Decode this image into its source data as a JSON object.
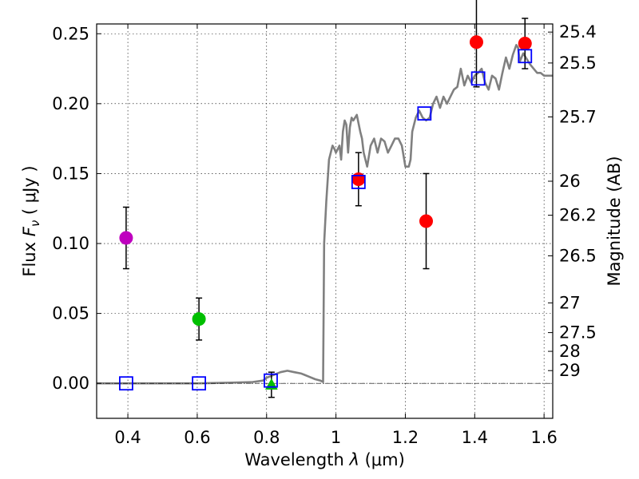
{
  "chart_data": {
    "type": "scatter",
    "title": "",
    "xlabel_prefix": "Wavelength",
    "xlabel_symbol": "λ",
    "xlabel_unit": "(μm)",
    "ylabel_prefix": "Flux",
    "ylabel_symbol": "F",
    "ylabel_subscript": "ν",
    "ylabel_unit": "( μJy )",
    "y2label": "Magnitude (AB)",
    "xlim": [
      0.31,
      1.625
    ],
    "ylim": [
      -0.025,
      0.257
    ],
    "grid": true,
    "x_ticks": [
      0.4,
      0.6,
      0.8,
      1.0,
      1.2,
      1.4,
      1.6
    ],
    "x_tick_labels": [
      "0.4",
      "0.6",
      "0.8",
      "1",
      "1.2",
      "1.4",
      "1.6"
    ],
    "y_ticks": [
      0.0,
      0.05,
      0.1,
      0.15,
      0.2,
      0.25
    ],
    "y_tick_labels": [
      "0.00",
      "0.05",
      "0.10",
      "0.15",
      "0.20",
      "0.25"
    ],
    "y2_ticks": [
      {
        "mag": 25.4,
        "label": "25.4"
      },
      {
        "mag": 25.5,
        "label": "25.5"
      },
      {
        "mag": 25.7,
        "label": "25.7"
      },
      {
        "mag": 26.0,
        "label": "26"
      },
      {
        "mag": 26.2,
        "label": "26.2"
      },
      {
        "mag": 26.5,
        "label": "26.5"
      },
      {
        "mag": 27.0,
        "label": "27"
      },
      {
        "mag": 27.5,
        "label": "27.5"
      },
      {
        "mag": 28.0,
        "label": "28"
      },
      {
        "mag": 29.0,
        "label": "29"
      }
    ],
    "observed": [
      {
        "x": 0.395,
        "y": 0.104,
        "err": 0.022,
        "color": "#bf00bf",
        "marker": "circle"
      },
      {
        "x": 0.605,
        "y": 0.046,
        "err": 0.015,
        "color": "#00bf00",
        "marker": "circle"
      },
      {
        "x": 0.814,
        "y": -0.001,
        "err": 0.009,
        "color": "#00bf00",
        "marker": "triangle"
      },
      {
        "x": 1.065,
        "y": 0.146,
        "err": 0.019,
        "color": "#ff0000",
        "marker": "circle"
      },
      {
        "x": 1.26,
        "y": 0.116,
        "err": 0.034,
        "color": "#ff0000",
        "marker": "circle"
      },
      {
        "x": 1.405,
        "y": 0.244,
        "err": 0.032,
        "color": "#ff0000",
        "marker": "circle"
      },
      {
        "x": 1.545,
        "y": 0.243,
        "err": 0.018,
        "color": "#ff0000",
        "marker": "circle"
      }
    ],
    "model_photometry": {
      "color": "#0000ff",
      "marker": "square-open",
      "points": [
        {
          "x": 0.395,
          "y": 0.0
        },
        {
          "x": 0.605,
          "y": 0.0
        },
        {
          "x": 0.812,
          "y": 0.002
        },
        {
          "x": 1.065,
          "y": 0.144
        },
        {
          "x": 1.255,
          "y": 0.193
        },
        {
          "x": 1.41,
          "y": 0.218
        },
        {
          "x": 1.545,
          "y": 0.234
        }
      ]
    },
    "model_spectrum": {
      "color": "#808080",
      "x": [
        0.31,
        0.4,
        0.5,
        0.6,
        0.7,
        0.76,
        0.79,
        0.8,
        0.82,
        0.84,
        0.86,
        0.88,
        0.9,
        0.92,
        0.94,
        0.955,
        0.963,
        0.966,
        0.972,
        0.98,
        0.99,
        0.995,
        1.0,
        1.01,
        1.015,
        1.02,
        1.025,
        1.03,
        1.035,
        1.04,
        1.045,
        1.05,
        1.06,
        1.07,
        1.075,
        1.08,
        1.09,
        1.1,
        1.11,
        1.12,
        1.13,
        1.14,
        1.15,
        1.16,
        1.17,
        1.18,
        1.19,
        1.2,
        1.21,
        1.215,
        1.22,
        1.23,
        1.24,
        1.25,
        1.26,
        1.27,
        1.28,
        1.29,
        1.3,
        1.31,
        1.32,
        1.33,
        1.34,
        1.35,
        1.36,
        1.37,
        1.38,
        1.39,
        1.4,
        1.41,
        1.42,
        1.43,
        1.44,
        1.45,
        1.46,
        1.47,
        1.48,
        1.49,
        1.5,
        1.51,
        1.52,
        1.525,
        1.53,
        1.54,
        1.55,
        1.56,
        1.57,
        1.58,
        1.59,
        1.6,
        1.61,
        1.625
      ],
      "y": [
        0.0,
        0.0,
        0.0,
        0.0,
        0.0005,
        0.001,
        0.002,
        0.004,
        0.006,
        0.008,
        0.009,
        0.008,
        0.007,
        0.005,
        0.003,
        0.002,
        0.001,
        0.1,
        0.13,
        0.16,
        0.17,
        0.168,
        0.165,
        0.17,
        0.16,
        0.18,
        0.188,
        0.185,
        0.165,
        0.183,
        0.19,
        0.188,
        0.192,
        0.18,
        0.175,
        0.165,
        0.155,
        0.17,
        0.175,
        0.165,
        0.175,
        0.173,
        0.165,
        0.17,
        0.175,
        0.175,
        0.17,
        0.155,
        0.155,
        0.16,
        0.18,
        0.19,
        0.195,
        0.19,
        0.188,
        0.19,
        0.2,
        0.205,
        0.197,
        0.205,
        0.2,
        0.205,
        0.21,
        0.212,
        0.225,
        0.213,
        0.22,
        0.215,
        0.22,
        0.222,
        0.225,
        0.215,
        0.21,
        0.22,
        0.218,
        0.21,
        0.222,
        0.233,
        0.225,
        0.235,
        0.242,
        0.24,
        0.23,
        0.236,
        0.232,
        0.228,
        0.225,
        0.222,
        0.222,
        0.22,
        0.22,
        0.22
      ]
    }
  }
}
